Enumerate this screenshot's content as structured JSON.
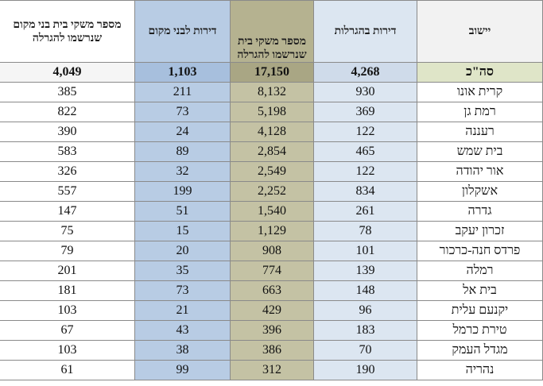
{
  "table": {
    "headers": [
      "יישוב",
      "דירות בהגרלות",
      "מספר משקי בית שנרשמו להגרלה",
      "דירות לבני מקום",
      "מספר משקי בית בני מקום שנרשמו להגרלה"
    ],
    "rows": [
      [
        "סה\"כ",
        "4,268",
        "17,150",
        "1,103",
        "4,049"
      ],
      [
        "קרית אונו",
        "930",
        "8,132",
        "211",
        "385"
      ],
      [
        "רמת גן",
        "369",
        "5,198",
        "73",
        "822"
      ],
      [
        "רעננה",
        "122",
        "4,128",
        "24",
        "390"
      ],
      [
        "בית שמש",
        "465",
        "2,854",
        "89",
        "583"
      ],
      [
        "אור יהודה",
        "122",
        "2,549",
        "32",
        "326"
      ],
      [
        "אשקלון",
        "834",
        "2,252",
        "199",
        "557"
      ],
      [
        "גדרה",
        "261",
        "1,540",
        "51",
        "147"
      ],
      [
        "זכרון יעקב",
        "78",
        "1,129",
        "15",
        "75"
      ],
      [
        "פרדס חנה-כרכור",
        "101",
        "908",
        "20",
        "79"
      ],
      [
        "רמלה",
        "139",
        "774",
        "35",
        "201"
      ],
      [
        "בית אל",
        "148",
        "663",
        "73",
        "181"
      ],
      [
        "יקנעם עלית",
        "96",
        "429",
        "21",
        "103"
      ],
      [
        "טירת כרמל",
        "183",
        "396",
        "43",
        "67"
      ],
      [
        "מגדל העמק",
        "70",
        "386",
        "38",
        "103"
      ],
      [
        "נהריה",
        "190",
        "312",
        "99",
        "61"
      ]
    ]
  }
}
